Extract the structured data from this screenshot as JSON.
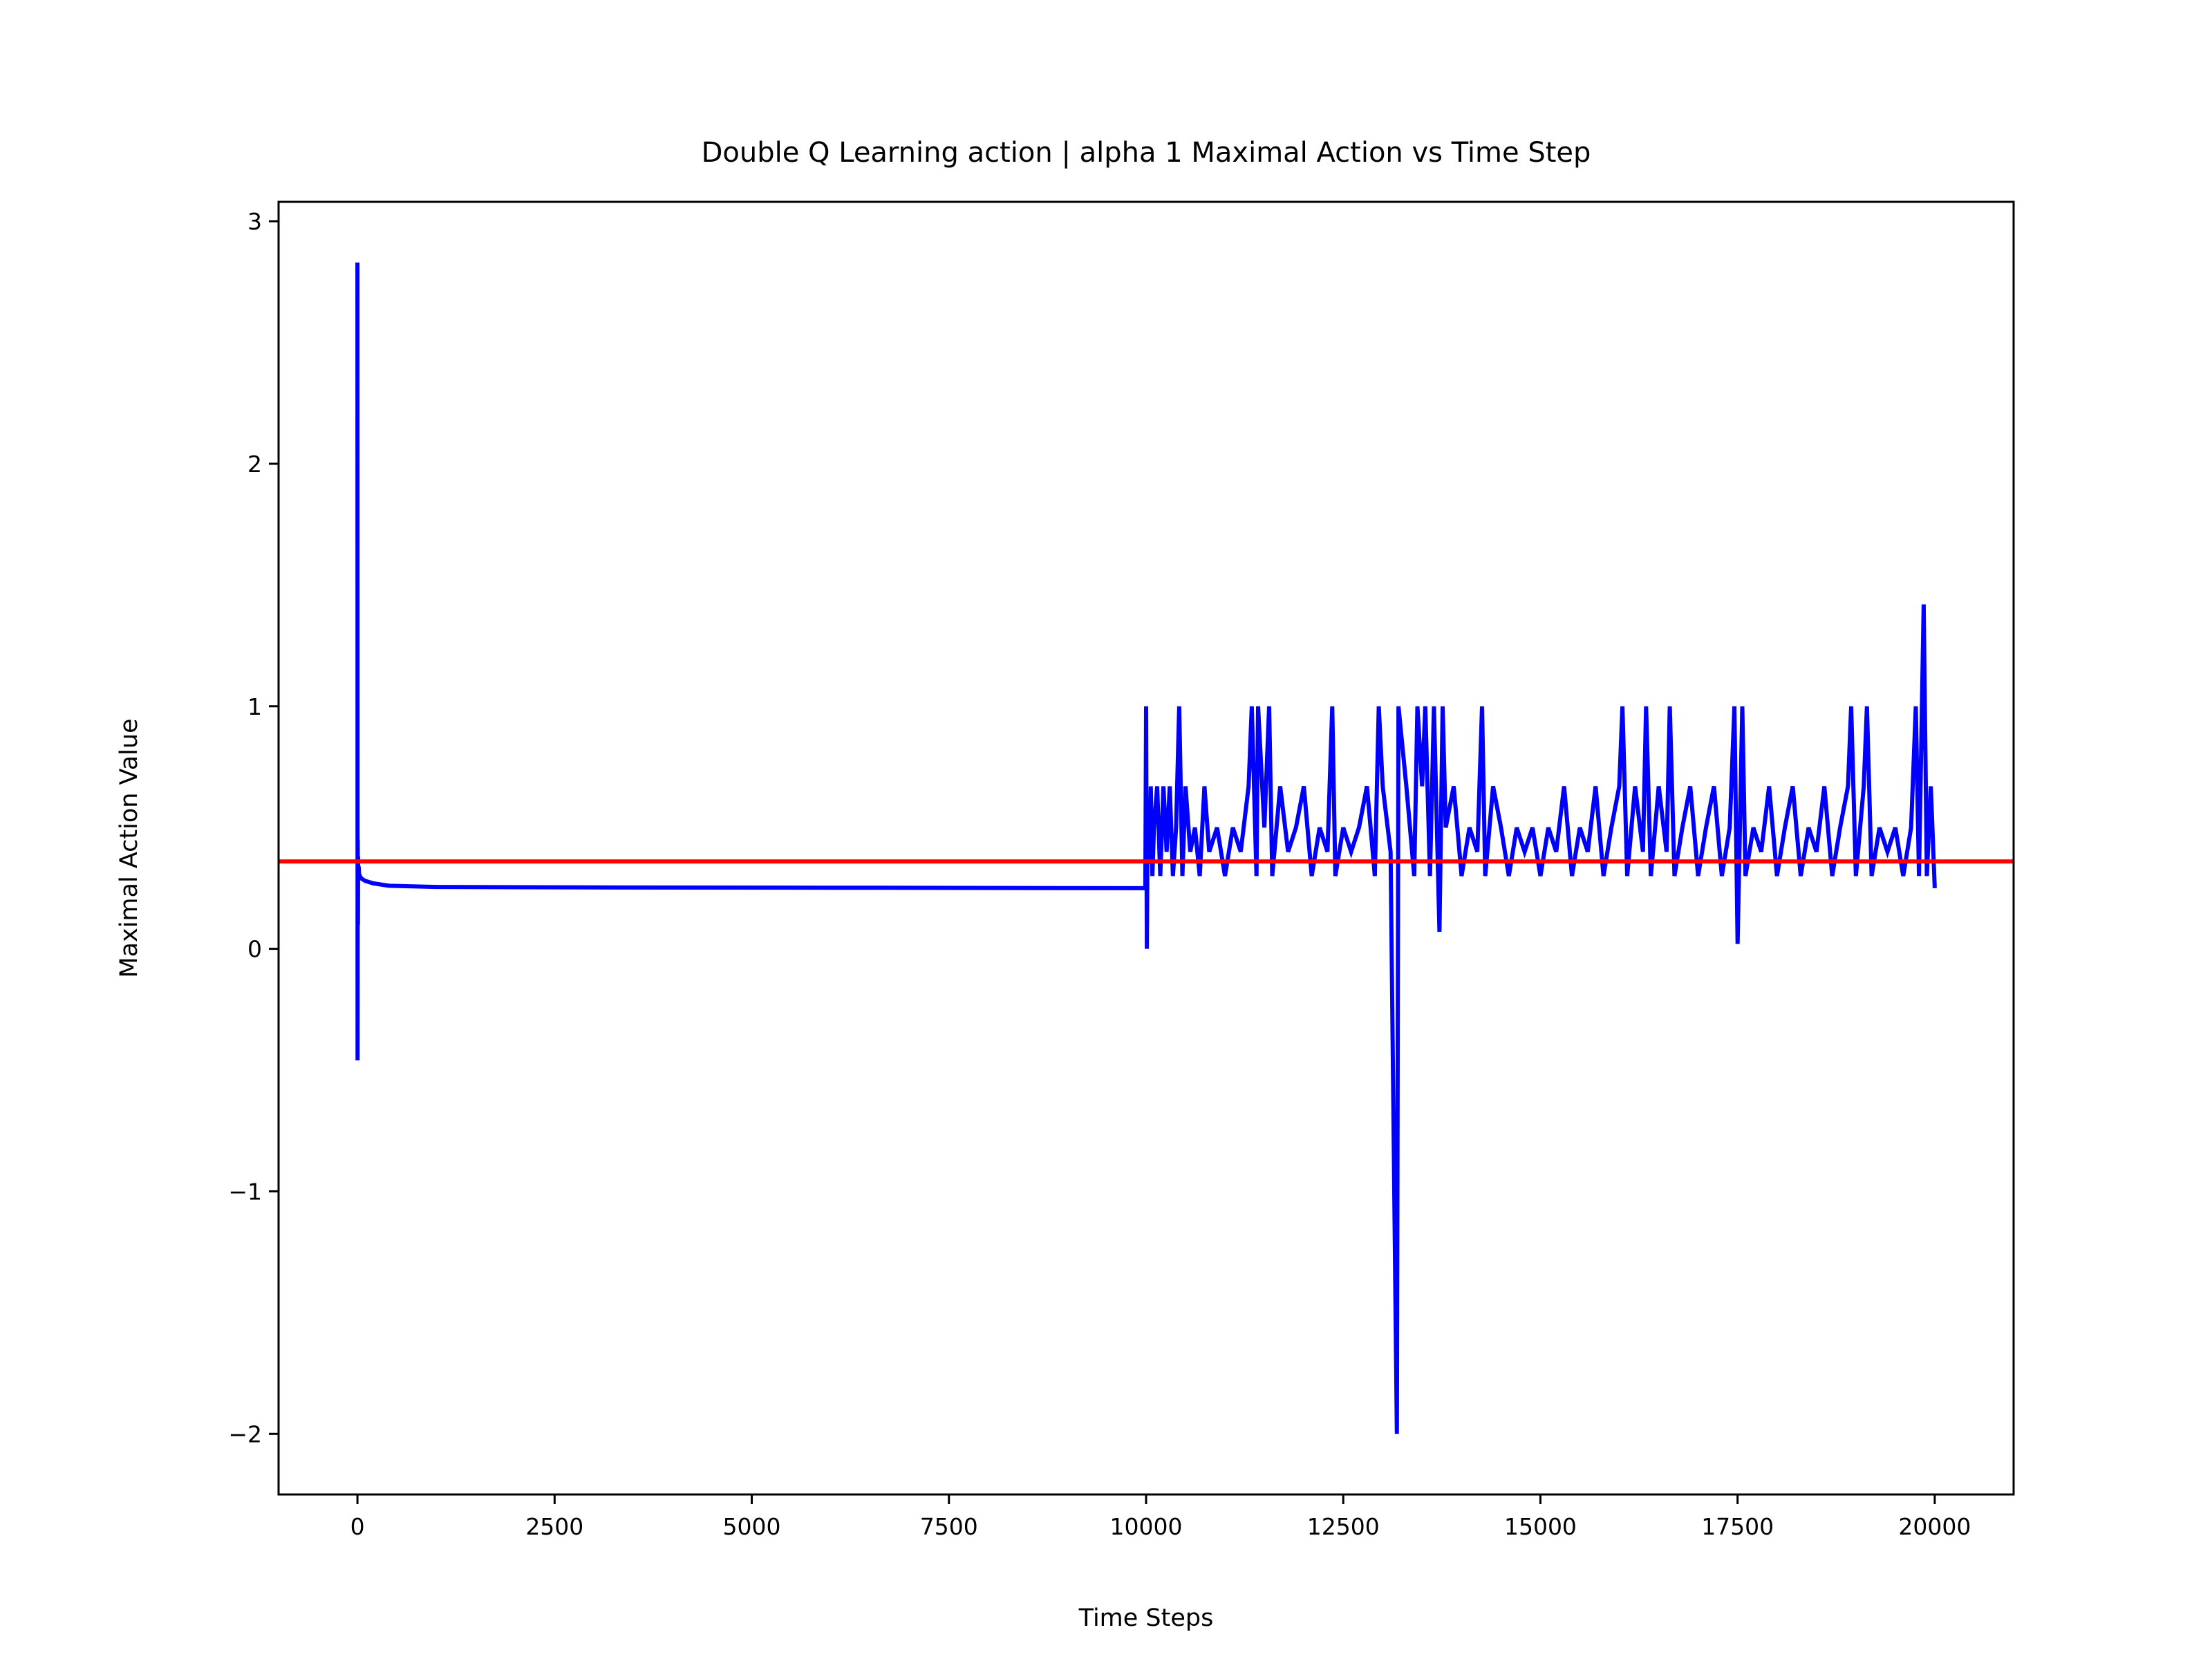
{
  "chart_data": {
    "type": "line",
    "title": "Double Q Learning action | alpha 1 Maximal Action vs Time Step",
    "xlabel": "Time Steps",
    "ylabel": "Maximal Action Value",
    "xlim": [
      -1000,
      21000
    ],
    "ylim": [
      -2.25,
      3.08
    ],
    "x_ticks": [
      0,
      2500,
      5000,
      7500,
      10000,
      12500,
      15000,
      17500,
      20000
    ],
    "x_tick_labels": [
      "0",
      "2500",
      "5000",
      "7500",
      "10000",
      "12500",
      "15000",
      "17500",
      "20000"
    ],
    "y_ticks": [
      -2,
      -1,
      0,
      1,
      2,
      3
    ],
    "y_tick_labels": [
      "−2",
      "−1",
      "0",
      "1",
      "2",
      "3"
    ],
    "grid": false,
    "colors": {
      "series": "#0000ff",
      "reference": "#ff0000",
      "axes": "#000000"
    },
    "series": [
      {
        "style": "line",
        "color": "#0000ff",
        "x": [
          0,
          2,
          4,
          6,
          8,
          10,
          15,
          20,
          30,
          50,
          100,
          200,
          400,
          1000,
          3000,
          6000,
          9990,
          10000,
          10010,
          10020,
          10040,
          10060,
          10080,
          10100,
          10140,
          10180,
          10220,
          10260,
          10300,
          10340,
          10380,
          10420,
          10460,
          10500,
          10560,
          10620,
          10680,
          10740,
          10800,
          10900,
          11000,
          11100,
          11200,
          11300,
          11340,
          11400,
          11420,
          11500,
          11560,
          11600,
          11700,
          11800,
          11900,
          12000,
          12100,
          12200,
          12300,
          12360,
          12400,
          12500,
          12600,
          12700,
          12800,
          12900,
          12950,
          13000,
          13100,
          13180,
          13200,
          13300,
          13400,
          13440,
          13500,
          13540,
          13600,
          13650,
          13720,
          13760,
          13800,
          13900,
          14000,
          14100,
          14200,
          14260,
          14300,
          14400,
          14500,
          14600,
          14700,
          14800,
          14900,
          15000,
          15100,
          15200,
          15300,
          15400,
          15500,
          15600,
          15700,
          15800,
          15900,
          16000,
          16040,
          16100,
          16200,
          16300,
          16340,
          16400,
          16500,
          16600,
          16640,
          16700,
          16800,
          16900,
          17000,
          17100,
          17200,
          17300,
          17400,
          17460,
          17500,
          17560,
          17600,
          17700,
          17800,
          17900,
          18000,
          18100,
          18200,
          18300,
          18400,
          18500,
          18600,
          18700,
          18800,
          18900,
          18940,
          19000,
          19100,
          19140,
          19200,
          19300,
          19400,
          19500,
          19600,
          19700,
          19760,
          19800,
          19860,
          19900,
          19950,
          20000
        ],
        "y": [
          2.83,
          -0.46,
          0.45,
          0.1,
          0.38,
          0.3,
          0.34,
          0.31,
          0.3,
          0.29,
          0.28,
          0.27,
          0.26,
          0.255,
          0.253,
          0.252,
          0.25,
          1.0,
          0.0,
          0.6,
          0.35,
          0.67,
          0.3,
          0.5,
          0.67,
          0.3,
          0.67,
          0.4,
          0.67,
          0.3,
          0.5,
          1.0,
          0.3,
          0.67,
          0.4,
          0.5,
          0.3,
          0.67,
          0.4,
          0.5,
          0.3,
          0.5,
          0.4,
          0.67,
          1.0,
          0.3,
          1.0,
          0.5,
          1.0,
          0.3,
          0.67,
          0.4,
          0.5,
          0.67,
          0.3,
          0.5,
          0.4,
          1.0,
          0.3,
          0.5,
          0.4,
          0.5,
          0.67,
          0.3,
          1.0,
          0.67,
          0.4,
          -2.0,
          1.0,
          0.67,
          0.3,
          1.0,
          0.67,
          1.0,
          0.3,
          1.0,
          0.07,
          1.0,
          0.5,
          0.67,
          0.3,
          0.5,
          0.4,
          1.0,
          0.3,
          0.67,
          0.5,
          0.3,
          0.5,
          0.4,
          0.5,
          0.3,
          0.5,
          0.4,
          0.67,
          0.3,
          0.5,
          0.4,
          0.67,
          0.3,
          0.5,
          0.67,
          1.0,
          0.3,
          0.67,
          0.4,
          1.0,
          0.3,
          0.67,
          0.4,
          1.0,
          0.3,
          0.5,
          0.67,
          0.3,
          0.5,
          0.67,
          0.3,
          0.5,
          1.0,
          0.02,
          1.0,
          0.3,
          0.5,
          0.4,
          0.67,
          0.3,
          0.5,
          0.67,
          0.3,
          0.5,
          0.4,
          0.67,
          0.3,
          0.5,
          0.67,
          1.0,
          0.3,
          0.67,
          1.0,
          0.3,
          0.5,
          0.4,
          0.5,
          0.3,
          0.5,
          1.0,
          0.3,
          1.42,
          0.3,
          0.67,
          0.25
        ]
      },
      {
        "style": "horizontal-line",
        "color": "#ff0000",
        "y_value": 0.36
      }
    ]
  }
}
